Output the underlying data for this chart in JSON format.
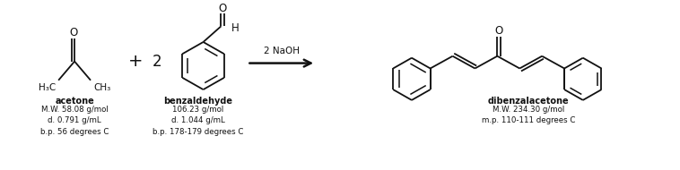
{
  "bg_color": "#ffffff",
  "fig_width": 7.58,
  "fig_height": 1.9,
  "dpi": 100,
  "acetone_label": "acetone",
  "acetone_info": "M.W. 58.08 g/mol\nd. 0.791 g/mL\nb.p. 56 degrees C",
  "benzaldehyde_label": "benzaldehyde",
  "benzaldehyde_info": "106.23 g/mol\nd. 1.044 g/mL\nb.p. 178-179 degrees C",
  "dibenzalacetone_label": "dibenzalacetone",
  "dibenzalacetone_info": "M.W. 234.30 g/mol\nm.p. 110-111 degrees C",
  "plus_sign": "+",
  "coeff_2": "2",
  "reagent": "2 NaOH",
  "text_color": "#111111",
  "line_color": "#111111",
  "font_size_label": 7.0,
  "font_size_info": 6.2,
  "font_size_symbol": 9
}
